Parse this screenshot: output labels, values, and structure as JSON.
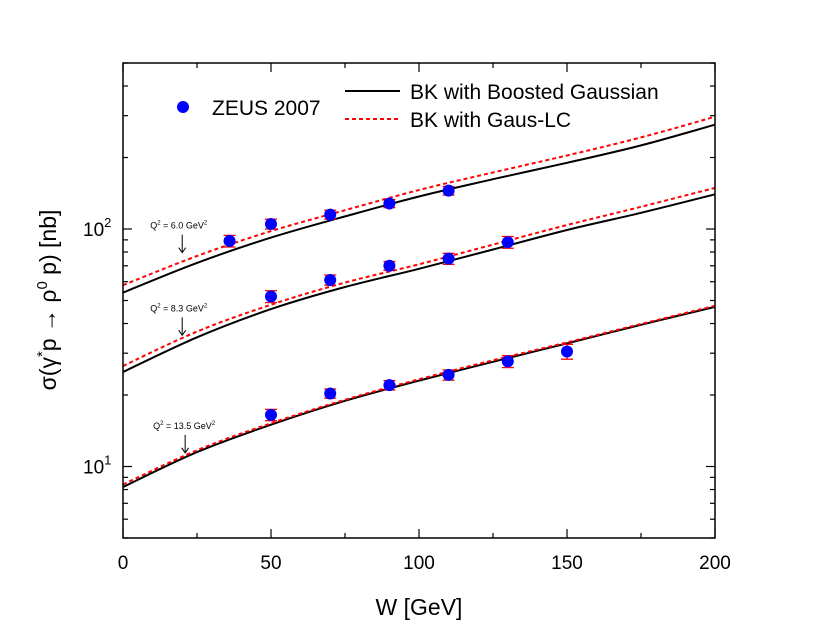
{
  "chart_data": {
    "type": "line",
    "xlabel": "W [GeV]",
    "ylabel": {
      "prefix": "σ(γ",
      "sup1": "*",
      "mid": "p → ρ",
      "sup2": "0",
      "suffix": " p) [nb]"
    },
    "xlim": [
      0,
      200
    ],
    "ylim": [
      5,
      500
    ],
    "yscale": "log",
    "x_ticks": [
      0,
      50,
      100,
      150,
      200
    ],
    "y_ticks": [
      {
        "value": 10,
        "base": "10",
        "exp": "1"
      },
      {
        "value": 100,
        "base": "10",
        "exp": "2"
      }
    ],
    "grid": false,
    "legend": {
      "placement": "top",
      "markers": [
        {
          "label": "ZEUS 2007",
          "color": "#0000ff"
        }
      ],
      "lines": [
        {
          "label": "BK with Boosted Gaussian",
          "color": "#000000",
          "dash": "solid"
        },
        {
          "label": "BK with Gaus-LC",
          "color": "#ff0000",
          "dash": "dashed"
        }
      ]
    },
    "annotations": [
      {
        "id": "q2_6",
        "text": "Q",
        "sup": "2",
        "rest": " = 6.0 GeV",
        "sup2": "2",
        "at_x": 20,
        "at_y": 78
      },
      {
        "id": "q2_83",
        "text": "Q",
        "sup": "2",
        "rest": " = 8.3 GeV",
        "sup2": "2",
        "at_x": 20,
        "at_y": 35
      },
      {
        "id": "q2_135",
        "text": "Q",
        "sup": "2",
        "rest": " = 13.5 GeV",
        "sup2": "2",
        "at_x": 21,
        "at_y": 11.2
      }
    ],
    "data_series": [
      {
        "name": "ZEUS 2007",
        "group": "Q2 = 6.0 GeV2",
        "x": [
          36,
          50,
          70,
          90,
          110
        ],
        "y": [
          89,
          105,
          115,
          128,
          145
        ],
        "err": [
          5,
          5,
          5,
          5,
          6
        ]
      },
      {
        "name": "ZEUS 2007",
        "group": "Q2 = 8.3 GeV2",
        "x": [
          50,
          70,
          90,
          110,
          130
        ],
        "y": [
          52,
          61,
          70,
          75,
          88
        ],
        "err": [
          3,
          3,
          3,
          4,
          5
        ]
      },
      {
        "name": "ZEUS 2007",
        "group": "Q2 = 13.5 GeV2",
        "x": [
          50,
          70,
          90,
          110,
          130,
          150
        ],
        "y": [
          16.5,
          20.3,
          22.0,
          24.3,
          27.7,
          30.5
        ],
        "err": [
          0.9,
          0.9,
          1.0,
          1.2,
          1.6,
          2.2
        ]
      }
    ],
    "curves": [
      {
        "name": "BK with Boosted Gaussian",
        "group": "Q2 = 6.0 GeV2",
        "style": "solid",
        "color": "#000000",
        "x": [
          0,
          25,
          50,
          75,
          100,
          125,
          150,
          175,
          200
        ],
        "y": [
          54,
          72,
          92,
          113,
          137,
          162,
          190,
          225,
          275
        ]
      },
      {
        "name": "BK with Gaus-LC",
        "group": "Q2 = 6.0 GeV2",
        "style": "dashed",
        "color": "#ff0000",
        "x": [
          0,
          25,
          50,
          75,
          100,
          125,
          150,
          175,
          200
        ],
        "y": [
          58,
          77,
          98,
          120,
          146,
          173,
          204,
          243,
          297
        ]
      },
      {
        "name": "BK with Boosted Gaussian",
        "group": "Q2 = 8.3 GeV2",
        "style": "solid",
        "color": "#000000",
        "x": [
          0,
          25,
          50,
          75,
          100,
          125,
          150,
          175,
          200
        ],
        "y": [
          25,
          35,
          46,
          57,
          68,
          82,
          99,
          117,
          140
        ]
      },
      {
        "name": "BK with Gaus-LC",
        "group": "Q2 = 8.3 GeV2",
        "style": "dashed",
        "color": "#ff0000",
        "x": [
          0,
          25,
          50,
          75,
          100,
          125,
          150,
          175,
          200
        ],
        "y": [
          26.5,
          37,
          48,
          59.5,
          71,
          86,
          104,
          124,
          149
        ]
      },
      {
        "name": "BK with Boosted Gaussian",
        "group": "Q2 = 13.5 GeV2",
        "style": "solid",
        "color": "#000000",
        "x": [
          0,
          25,
          50,
          75,
          100,
          125,
          150,
          175,
          200
        ],
        "y": [
          8.2,
          11.5,
          15.0,
          18.9,
          23.0,
          27.6,
          33.0,
          39.5,
          47
        ]
      },
      {
        "name": "BK with Gaus-LC",
        "group": "Q2 = 13.5 GeV2",
        "style": "dashed",
        "color": "#ff0000",
        "x": [
          0,
          25,
          50,
          75,
          100,
          125,
          150,
          175,
          200
        ],
        "y": [
          8.4,
          11.7,
          15.2,
          19.1,
          23.3,
          28.0,
          33.3,
          39.8,
          47.5
        ]
      }
    ]
  }
}
